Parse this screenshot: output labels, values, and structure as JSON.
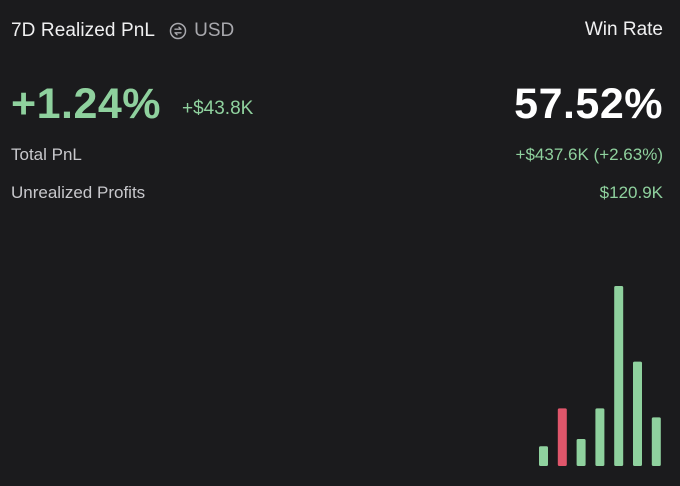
{
  "header": {
    "title": "7D Realized PnL",
    "currency_icon": "swap-circle-icon",
    "currency": "USD",
    "win_rate_label": "Win Rate"
  },
  "summary": {
    "realized_pnl_percent": "+1.24%",
    "realized_pnl_amount": "+$43.8K",
    "win_rate": "57.52%"
  },
  "stats": {
    "total_pnl_label": "Total PnL",
    "total_pnl_value": "+$437.6K (+2.63%)",
    "unrealized_label": "Unrealized Profits",
    "unrealized_value": "$120.9K"
  },
  "colors": {
    "background": "#1b1b1d",
    "positive": "#8fd19e",
    "negative": "#e0566b",
    "text": "#f0f0f1",
    "muted": "#a8a8ad"
  },
  "chart_data": {
    "type": "bar",
    "values": [
      11,
      32,
      15,
      32,
      100,
      58,
      27
    ],
    "ylim": [
      0,
      100
    ],
    "signs": [
      "positive",
      "negative",
      "positive",
      "positive",
      "positive",
      "positive",
      "positive"
    ],
    "grid": false
  }
}
